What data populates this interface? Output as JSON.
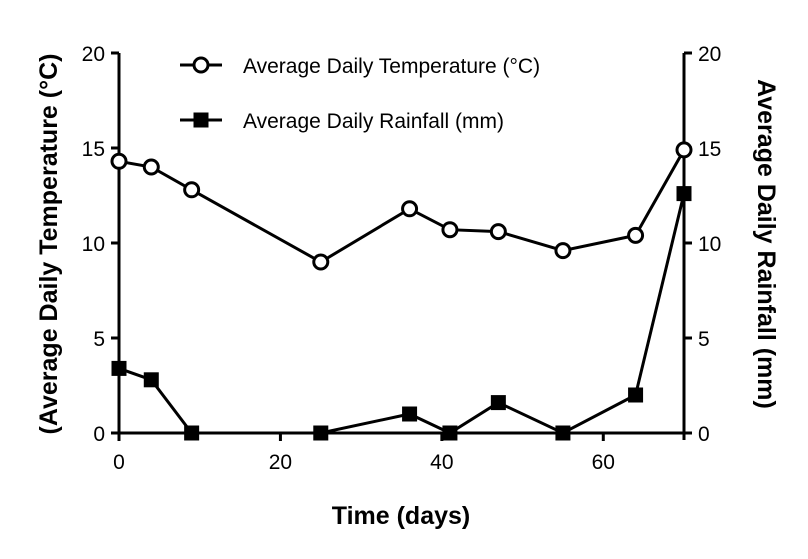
{
  "chart_data": {
    "type": "line",
    "title": "",
    "xlabel": "Time (days)",
    "ylabel_left": "(Average Daily Temperature (°C)",
    "ylabel_right": "Average Daily Rainfall (mm)",
    "xlim": [
      0,
      70
    ],
    "ylim_left": [
      0,
      20
    ],
    "ylim_right": [
      0,
      20
    ],
    "xticks": [
      0,
      20,
      40,
      60
    ],
    "xtick_labels": [
      "0",
      "20",
      "40",
      "60"
    ],
    "yticks_left": [
      0,
      5,
      10,
      15,
      20
    ],
    "ytick_labels_left": [
      "0",
      "5",
      "10",
      "15",
      "20"
    ],
    "yticks_right": [
      0,
      5,
      10,
      15,
      20
    ],
    "ytick_labels_right": [
      "0",
      "5",
      "10",
      "15",
      "20"
    ],
    "grid": false,
    "legend_position": "top",
    "series": [
      {
        "name": "Average Daily Temperature (°C)",
        "axis": "left",
        "marker": "open-circle",
        "x": [
          0,
          4,
          9,
          25,
          36,
          41,
          47,
          55,
          64,
          70
        ],
        "values": [
          14.3,
          14.0,
          12.8,
          9.0,
          11.8,
          10.7,
          10.6,
          9.6,
          10.4,
          14.9
        ]
      },
      {
        "name": "Average Daily Rainfall (mm)",
        "axis": "right",
        "marker": "filled-square",
        "x": [
          0,
          4,
          9,
          25,
          36,
          41,
          47,
          55,
          64,
          70
        ],
        "values": [
          3.4,
          2.8,
          0.0,
          0.0,
          1.0,
          0.0,
          1.6,
          0.0,
          2.0,
          12.6
        ]
      }
    ]
  }
}
